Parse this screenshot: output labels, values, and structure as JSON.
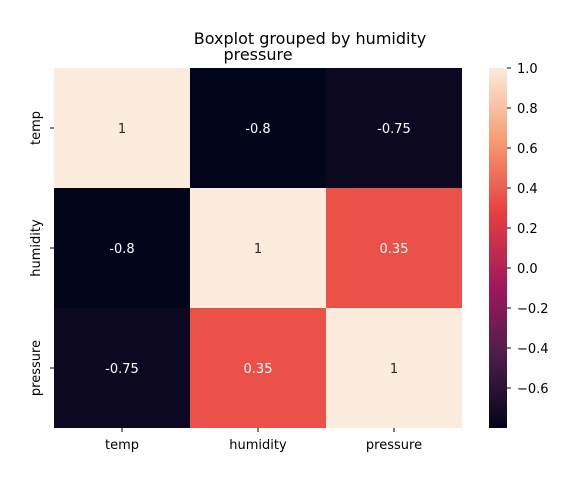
{
  "chart_data": {
    "type": "heatmap",
    "title": "Boxplot grouped by humidity",
    "subtitle": "pressure",
    "x_categories": [
      "temp",
      "humidity",
      "pressure"
    ],
    "y_categories": [
      "temp",
      "humidity",
      "pressure"
    ],
    "values": [
      [
        1,
        -0.8,
        -0.75
      ],
      [
        -0.8,
        1,
        0.35
      ],
      [
        -0.75,
        0.35,
        1
      ]
    ],
    "cell_labels": [
      [
        "1",
        "-0.8",
        "-0.75"
      ],
      [
        "-0.8",
        "1",
        "0.35"
      ],
      [
        "-0.75",
        "0.35",
        "1"
      ]
    ],
    "colorbar": {
      "vmin": -0.8,
      "vmax": 1.0,
      "ticks": [
        1.0,
        0.8,
        0.6,
        0.4,
        0.2,
        0.0,
        -0.2,
        -0.4,
        -0.6
      ],
      "tick_labels": [
        "1.0",
        "0.8",
        "0.6",
        "0.4",
        "0.2",
        "0.0",
        "−0.2",
        "−0.4",
        "−0.6"
      ],
      "colormap": "rocket",
      "stops": [
        "#03051a",
        "#4c1d4b",
        "#a11a5b",
        "#e83f3f",
        "#f69c73",
        "#faebdd"
      ]
    }
  }
}
